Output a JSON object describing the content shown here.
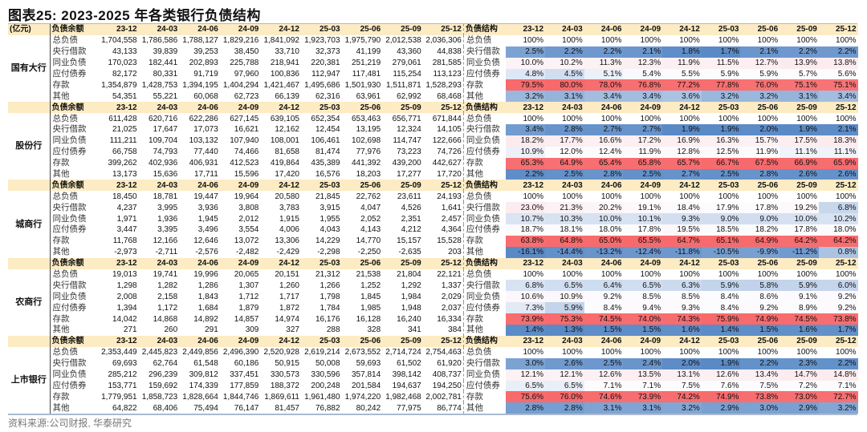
{
  "title": "图表25:  2023-2025 年各类银行负债结构",
  "unit_label": "(亿元)",
  "left_header": "负债余额",
  "right_header": "负债结构",
  "periods": [
    "23-12",
    "24-03",
    "24-06",
    "24-09",
    "24-12",
    "25-03",
    "25-06",
    "25-09",
    "25-12"
  ],
  "scale_colors": {
    "low": "#5a8ac6",
    "mid": "#fcfcff",
    "high": "#f8696b"
  },
  "groups": [
    {
      "name": "国有大行",
      "rows": [
        {
          "label": "总负债",
          "values": [
            "1,704,558",
            "1,786,586",
            "1,788,127",
            "1,829,216",
            "1,841,092",
            "1,923,703",
            "1,975,790",
            "2,012,538",
            "2,036,306"
          ],
          "pct": [
            "100%",
            "100%",
            "100%",
            "100%",
            "100%",
            "100%",
            "100%",
            "100%",
            "100%"
          ]
        },
        {
          "label": "央行借款",
          "values": [
            "43,133",
            "39,839",
            "39,253",
            "38,450",
            "33,710",
            "32,373",
            "41,199",
            "43,360",
            "44,838"
          ],
          "pct": [
            "2.5%",
            "2.2%",
            "2.2%",
            "2.1%",
            "1.8%",
            "1.7%",
            "2.1%",
            "2.2%",
            "2.2%"
          ]
        },
        {
          "label": "同业负债",
          "values": [
            "170,023",
            "182,441",
            "202,893",
            "225,788",
            "218,941",
            "220,381",
            "251,219",
            "279,061",
            "281,585"
          ],
          "pct": [
            "10.0%",
            "10.2%",
            "11.3%",
            "12.3%",
            "11.9%",
            "11.5%",
            "12.7%",
            "13.9%",
            "13.8%"
          ]
        },
        {
          "label": "应付债券",
          "values": [
            "82,172",
            "80,331",
            "91,719",
            "97,960",
            "100,836",
            "112,947",
            "117,481",
            "115,254",
            "113,123"
          ],
          "pct": [
            "4.8%",
            "4.5%",
            "5.1%",
            "5.4%",
            "5.5%",
            "5.9%",
            "5.9%",
            "5.7%",
            "5.6%"
          ]
        },
        {
          "label": "存款",
          "values": [
            "1,354,879",
            "1,428,753",
            "1,394,195",
            "1,404,294",
            "1,421,467",
            "1,495,686",
            "1,501,930",
            "1,511,871",
            "1,528,293"
          ],
          "pct": [
            "79.5%",
            "80.0%",
            "78.0%",
            "76.8%",
            "77.2%",
            "77.8%",
            "76.0%",
            "75.1%",
            "75.1%"
          ]
        },
        {
          "label": "其他",
          "values": [
            "54,351",
            "55,221",
            "60,068",
            "62,723",
            "66,139",
            "62,316",
            "63,961",
            "62,992",
            "68,468"
          ],
          "pct": [
            "3.2%",
            "3.1%",
            "3.4%",
            "3.4%",
            "3.6%",
            "3.2%",
            "3.2%",
            "3.1%",
            "3.4%"
          ]
        }
      ]
    },
    {
      "name": "股份行",
      "rows": [
        {
          "label": "总负债",
          "values": [
            "611,428",
            "620,716",
            "622,286",
            "627,145",
            "639,105",
            "652,354",
            "653,463",
            "656,771",
            "671,844"
          ],
          "pct": [
            "100%",
            "100%",
            "100%",
            "100%",
            "100%",
            "100%",
            "100%",
            "100%",
            "100%"
          ]
        },
        {
          "label": "央行借款",
          "values": [
            "21,025",
            "17,647",
            "17,073",
            "16,621",
            "12,162",
            "12,454",
            "13,195",
            "12,324",
            "14,105"
          ],
          "pct": [
            "3.4%",
            "2.8%",
            "2.7%",
            "2.7%",
            "1.9%",
            "1.9%",
            "2.0%",
            "1.9%",
            "2.1%"
          ]
        },
        {
          "label": "同业负债",
          "values": [
            "111,211",
            "109,704",
            "103,132",
            "107,940",
            "108,001",
            "106,461",
            "102,698",
            "114,747",
            "122,666"
          ],
          "pct": [
            "18.2%",
            "17.7%",
            "16.6%",
            "17.2%",
            "16.9%",
            "16.3%",
            "15.7%",
            "17.5%",
            "18.3%"
          ]
        },
        {
          "label": "应付债券",
          "values": [
            "66,758",
            "74,793",
            "77,440",
            "74,466",
            "81,658",
            "81,474",
            "77,976",
            "73,223",
            "74,726"
          ],
          "pct": [
            "10.9%",
            "12.0%",
            "12.4%",
            "11.9%",
            "12.8%",
            "12.5%",
            "11.9%",
            "11.1%",
            "11.1%"
          ]
        },
        {
          "label": "存款",
          "values": [
            "399,262",
            "402,936",
            "406,931",
            "412,523",
            "419,864",
            "435,389",
            "441,392",
            "439,200",
            "442,627"
          ],
          "pct": [
            "65.3%",
            "64.9%",
            "65.4%",
            "65.8%",
            "65.7%",
            "66.7%",
            "67.5%",
            "66.9%",
            "65.9%"
          ]
        },
        {
          "label": "其他",
          "values": [
            "13,173",
            "15,636",
            "17,711",
            "15,596",
            "17,420",
            "16,576",
            "18,203",
            "17,277",
            "17,720"
          ],
          "pct": [
            "2.2%",
            "2.5%",
            "2.8%",
            "2.5%",
            "2.7%",
            "2.5%",
            "2.8%",
            "2.6%",
            "2.6%"
          ]
        }
      ]
    },
    {
      "name": "城商行",
      "rows": [
        {
          "label": "总负债",
          "values": [
            "18,450",
            "18,781",
            "19,447",
            "19,964",
            "20,580",
            "21,845",
            "22,762",
            "23,611",
            "24,193"
          ],
          "pct": [
            "100%",
            "100%",
            "100%",
            "100%",
            "100%",
            "100%",
            "100%",
            "100%",
            "100%"
          ]
        },
        {
          "label": "央行借款",
          "values": [
            "4,237",
            "3,995",
            "3,936",
            "3,808",
            "3,783",
            "3,915",
            "4,047",
            "4,526",
            "1,641"
          ],
          "pct": [
            "23.0%",
            "21.3%",
            "20.2%",
            "19.1%",
            "18.4%",
            "17.9%",
            "17.8%",
            "19.2%",
            "6.8%"
          ]
        },
        {
          "label": "同业负债",
          "values": [
            "1,971",
            "1,936",
            "1,945",
            "2,012",
            "1,915",
            "1,955",
            "2,052",
            "2,351",
            "2,457"
          ],
          "pct": [
            "10.7%",
            "10.3%",
            "10.0%",
            "10.1%",
            "9.3%",
            "9.0%",
            "9.0%",
            "10.0%",
            "10.2%"
          ]
        },
        {
          "label": "应付债券",
          "values": [
            "3,447",
            "3,395",
            "3,496",
            "3,554",
            "4,006",
            "4,043",
            "4,143",
            "4,212",
            "4,364"
          ],
          "pct": [
            "18.7%",
            "18.1%",
            "18.0%",
            "17.8%",
            "19.5%",
            "18.5%",
            "18.2%",
            "17.8%",
            "18.0%"
          ]
        },
        {
          "label": "存款",
          "values": [
            "11,768",
            "12,166",
            "12,646",
            "13,072",
            "13,306",
            "14,229",
            "14,770",
            "15,157",
            "15,528"
          ],
          "pct": [
            "63.8%",
            "64.8%",
            "65.0%",
            "65.5%",
            "64.7%",
            "65.1%",
            "64.9%",
            "64.2%",
            "64.2%"
          ]
        },
        {
          "label": "其他",
          "values": [
            "-2,973",
            "-2,711",
            "-2,576",
            "-2,482",
            "-2,429",
            "-2,298",
            "-2,250",
            "-2,635",
            "203"
          ],
          "pct": [
            "-16.1%",
            "-14.4%",
            "-13.2%",
            "-12.4%",
            "-11.8%",
            "-10.5%",
            "-9.9%",
            "-11.2%",
            "0.8%"
          ]
        }
      ]
    },
    {
      "name": "农商行",
      "rows": [
        {
          "label": "总负债",
          "values": [
            "19,013",
            "19,741",
            "19,996",
            "20,065",
            "20,151",
            "21,312",
            "21,538",
            "21,804",
            "22,121"
          ],
          "pct": [
            "100%",
            "100%",
            "100%",
            "100%",
            "100%",
            "100%",
            "100%",
            "100%",
            "100%"
          ]
        },
        {
          "label": "央行借款",
          "values": [
            "1,298",
            "1,282",
            "1,286",
            "1,307",
            "1,260",
            "1,266",
            "1,252",
            "1,292",
            "1,337"
          ],
          "pct": [
            "6.8%",
            "6.5%",
            "6.4%",
            "6.5%",
            "6.3%",
            "5.9%",
            "5.8%",
            "5.9%",
            "6.0%"
          ]
        },
        {
          "label": "同业负债",
          "values": [
            "2,008",
            "2,158",
            "1,843",
            "1,712",
            "1,717",
            "1,798",
            "1,845",
            "1,984",
            "2,029"
          ],
          "pct": [
            "10.6%",
            "10.9%",
            "9.2%",
            "8.5%",
            "8.5%",
            "8.4%",
            "8.6%",
            "9.1%",
            "9.2%"
          ]
        },
        {
          "label": "应付债券",
          "values": [
            "1,394",
            "1,172",
            "1,684",
            "1,879",
            "1,872",
            "1,784",
            "1,985",
            "1,948",
            "2,037"
          ],
          "pct": [
            "7.3%",
            "5.9%",
            "8.4%",
            "9.4%",
            "9.3%",
            "8.4%",
            "9.2%",
            "8.9%",
            "9.2%"
          ]
        },
        {
          "label": "存款",
          "values": [
            "14,042",
            "14,868",
            "14,892",
            "14,857",
            "14,974",
            "16,176",
            "16,128",
            "16,240",
            "16,334"
          ],
          "pct": [
            "73.9%",
            "75.3%",
            "74.5%",
            "74.0%",
            "74.3%",
            "75.9%",
            "74.9%",
            "74.5%",
            "73.8%"
          ]
        },
        {
          "label": "其他",
          "values": [
            "271",
            "260",
            "291",
            "309",
            "327",
            "288",
            "328",
            "341",
            "384"
          ],
          "pct": [
            "1.4%",
            "1.3%",
            "1.5%",
            "1.5%",
            "1.6%",
            "1.4%",
            "1.5%",
            "1.6%",
            "1.7%"
          ]
        }
      ]
    },
    {
      "name": "上市银行",
      "rows": [
        {
          "label": "总负债",
          "values": [
            "2,353,449",
            "2,445,823",
            "2,449,856",
            "2,496,390",
            "2,520,928",
            "2,619,214",
            "2,673,552",
            "2,714,724",
            "2,754,463"
          ],
          "pct": [
            "100%",
            "100%",
            "100%",
            "100%",
            "100%",
            "100%",
            "100%",
            "100%",
            "100%"
          ]
        },
        {
          "label": "央行借款",
          "values": [
            "69,693",
            "62,764",
            "61,548",
            "60,186",
            "50,915",
            "50,008",
            "59,693",
            "61,502",
            "61,920"
          ],
          "pct": [
            "3.0%",
            "2.6%",
            "2.5%",
            "2.4%",
            "2.0%",
            "1.9%",
            "2.2%",
            "2.3%",
            "2.2%"
          ]
        },
        {
          "label": "同业负债",
          "values": [
            "285,212",
            "296,239",
            "309,812",
            "337,451",
            "330,573",
            "330,596",
            "357,814",
            "398,142",
            "408,737"
          ],
          "pct": [
            "12.1%",
            "12.1%",
            "12.6%",
            "13.5%",
            "13.1%",
            "12.6%",
            "13.4%",
            "14.7%",
            "14.8%"
          ]
        },
        {
          "label": "应付债券",
          "values": [
            "153,771",
            "159,692",
            "174,339",
            "177,859",
            "188,372",
            "200,248",
            "201,584",
            "194,637",
            "194,250"
          ],
          "pct": [
            "6.5%",
            "6.5%",
            "7.1%",
            "7.1%",
            "7.5%",
            "7.6%",
            "7.5%",
            "7.2%",
            "7.1%"
          ]
        },
        {
          "label": "存款",
          "values": [
            "1,779,951",
            "1,858,723",
            "1,828,664",
            "1,844,746",
            "1,869,611",
            "1,961,480",
            "1,974,220",
            "1,982,468",
            "2,002,781"
          ],
          "pct": [
            "75.6%",
            "76.0%",
            "74.6%",
            "73.9%",
            "74.2%",
            "74.9%",
            "73.8%",
            "73.0%",
            "72.7%"
          ]
        },
        {
          "label": "其他",
          "values": [
            "64,822",
            "68,406",
            "75,494",
            "76,147",
            "81,457",
            "76,882",
            "80,242",
            "77,975",
            "86,774"
          ],
          "pct": [
            "2.8%",
            "2.8%",
            "3.1%",
            "3.1%",
            "3.2%",
            "2.9%",
            "3.0%",
            "2.9%",
            "3.2%"
          ]
        }
      ]
    }
  ],
  "source": "资料来源:公司财报, 华泰研究"
}
